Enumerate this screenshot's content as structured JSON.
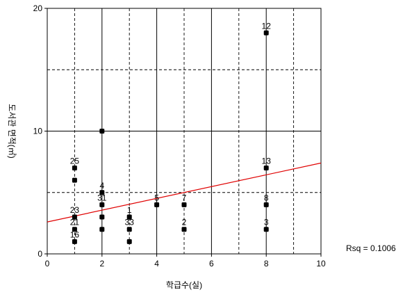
{
  "chart_data": {
    "type": "scatter",
    "xlabel": "학급수(실)",
    "ylabel": "도서관 면적(㎡)",
    "xlim": [
      0,
      10
    ],
    "ylim": [
      0,
      20
    ],
    "x_ticks": [
      "0",
      "2",
      "4",
      "6",
      "8",
      "10"
    ],
    "y_ticks": [
      "0",
      "10",
      "20"
    ],
    "gridlines_solid_x": [
      2,
      4,
      6,
      8
    ],
    "gridlines_solid_y": [
      10
    ],
    "gridlines_dashed_x": [
      1,
      3,
      5,
      7,
      9
    ],
    "gridlines_dashed_y": [
      5,
      15
    ],
    "points": [
      {
        "x": 1,
        "y": 7,
        "label": "25"
      },
      {
        "x": 1,
        "y": 6,
        "label": ""
      },
      {
        "x": 1,
        "y": 3,
        "label": "23"
      },
      {
        "x": 1,
        "y": 2,
        "label": "21"
      },
      {
        "x": 1,
        "y": 1,
        "label": "16"
      },
      {
        "x": 2,
        "y": 10,
        "label": ""
      },
      {
        "x": 2,
        "y": 5,
        "label": "4"
      },
      {
        "x": 2,
        "y": 4,
        "label": "31"
      },
      {
        "x": 2,
        "y": 3,
        "label": ""
      },
      {
        "x": 2,
        "y": 2,
        "label": ""
      },
      {
        "x": 3,
        "y": 3,
        "label": "1"
      },
      {
        "x": 3,
        "y": 2,
        "label": "33"
      },
      {
        "x": 3,
        "y": 1,
        "label": ""
      },
      {
        "x": 4,
        "y": 4,
        "label": "5"
      },
      {
        "x": 5,
        "y": 4,
        "label": "7"
      },
      {
        "x": 5,
        "y": 2,
        "label": "2"
      },
      {
        "x": 8,
        "y": 18,
        "label": "12"
      },
      {
        "x": 8,
        "y": 7,
        "label": "13"
      },
      {
        "x": 8,
        "y": 4,
        "label": "8"
      },
      {
        "x": 8,
        "y": 2,
        "label": "3"
      }
    ],
    "fit_line": {
      "x": [
        0,
        10
      ],
      "y": [
        2.6,
        7.4
      ],
      "color": "#e00000"
    },
    "point_color": "#000000",
    "annotation": "Rsq = 0.1006"
  }
}
